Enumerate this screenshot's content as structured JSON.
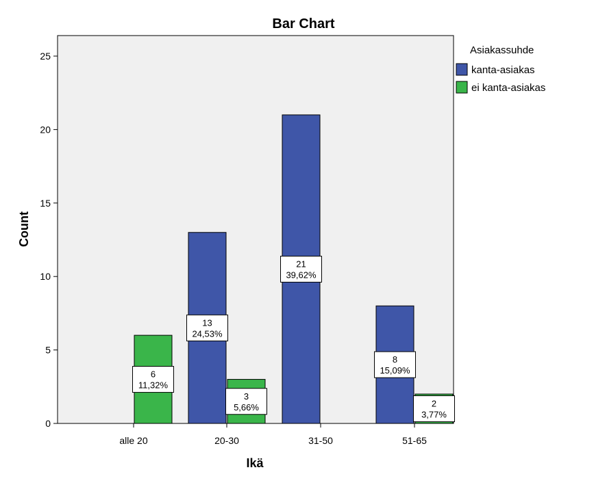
{
  "chart_data": {
    "type": "bar",
    "title": "Bar Chart",
    "xlabel": "Ikä",
    "ylabel": "Count",
    "categories": [
      "alle 20",
      "20-30",
      "31-50",
      "51-65"
    ],
    "ylim": [
      0,
      25
    ],
    "yticks": [
      0,
      5,
      10,
      15,
      20,
      25
    ],
    "grid": false,
    "legend": {
      "title": "Asiakassuhde",
      "placement": "right"
    },
    "series": [
      {
        "name": "kanta-asiakas",
        "color": "#3f56a8",
        "values": [
          null,
          13,
          21,
          8
        ],
        "labels": [
          null,
          "24,53%",
          "39,62%",
          "15,09%"
        ]
      },
      {
        "name": "ei kanta-asiakas",
        "color": "#3ab54a",
        "values": [
          6,
          3,
          null,
          2
        ],
        "labels": [
          "11,32%",
          "5,66%",
          null,
          "3,77%"
        ]
      }
    ],
    "plot_background": "#f0f0f0"
  }
}
